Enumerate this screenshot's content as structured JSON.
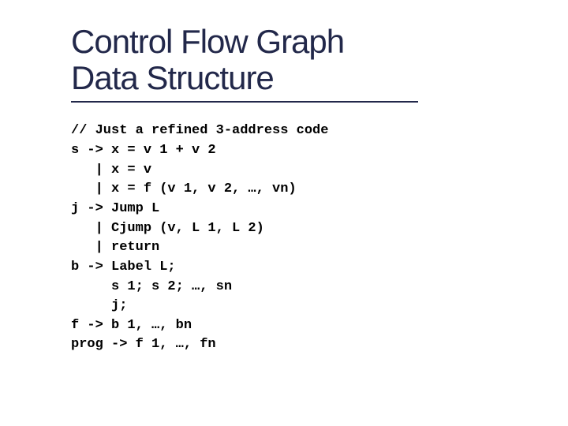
{
  "title_line1": "Control Flow Graph",
  "title_line2": "Data Structure",
  "title_color": "#22284a",
  "title_fontsize": 42,
  "underline_color": "#22284a",
  "underline_width": 440,
  "code_fontsize": 17,
  "code_fontweight": "bold",
  "code_color": "#000000",
  "background_color": "#ffffff",
  "code": {
    "l01": "// Just a refined 3-address code",
    "l02": "s -> x = v 1 + v 2",
    "l03": "   | x = v",
    "l04": "   | x = f (v 1, v 2, …, vn)",
    "l05": "j -> Jump L",
    "l06": "   | Cjump (v, L 1, L 2)",
    "l07": "   | return",
    "l08": "b -> Label L;",
    "l09": "     s 1; s 2; …, sn",
    "l10": "     j;",
    "l11": "f -> b 1, …, bn",
    "l12": "prog -> f 1, …, fn"
  }
}
